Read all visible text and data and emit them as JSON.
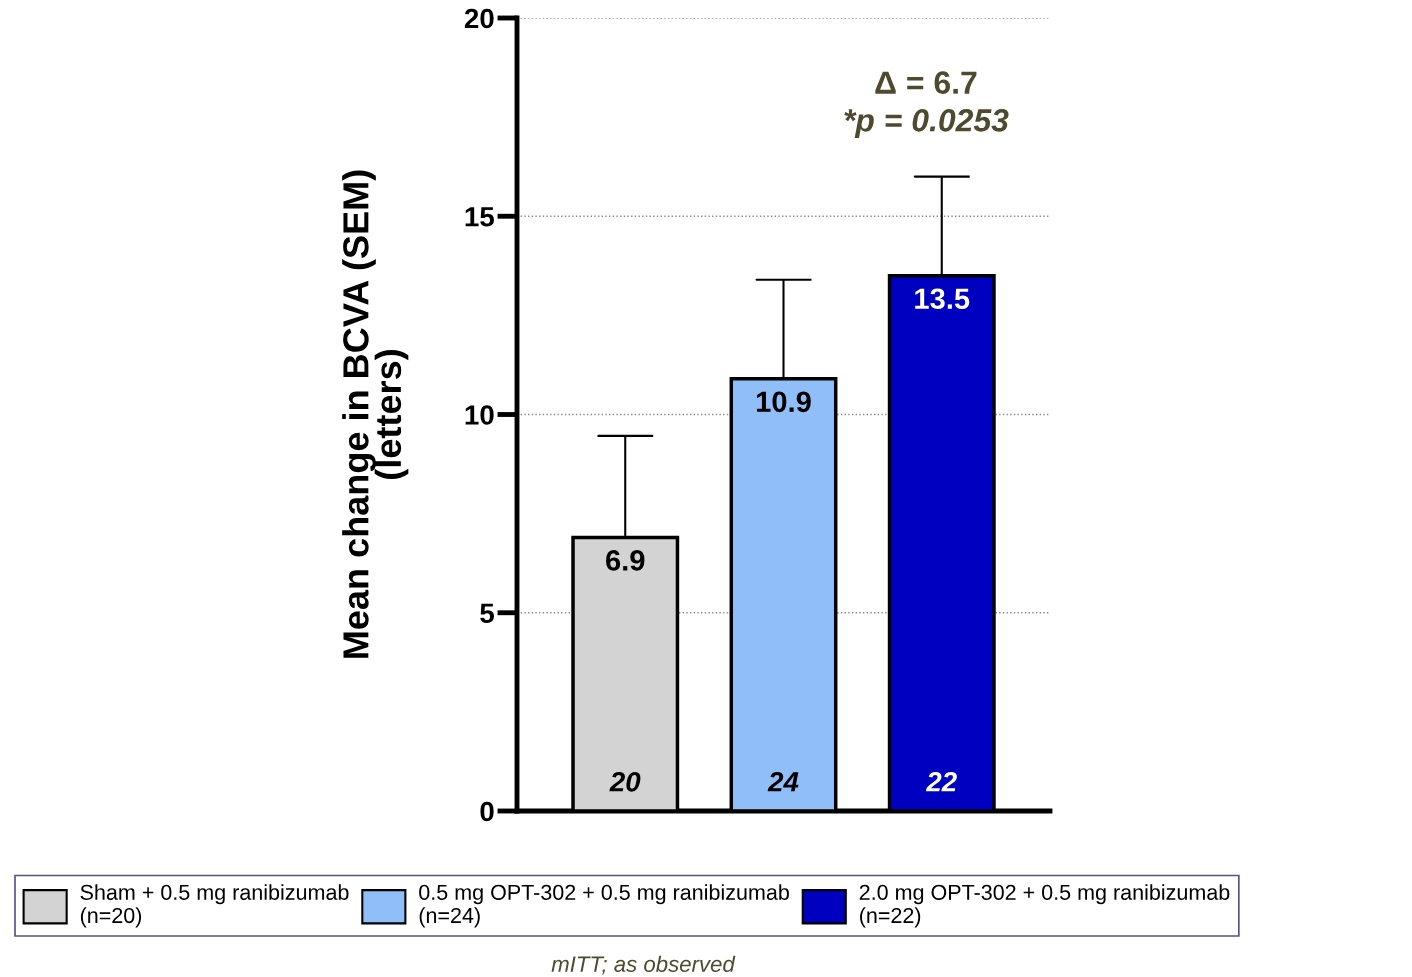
{
  "chart_data": {
    "type": "bar",
    "ylabel": "Mean change in BCVA (SEM)\n(letters)",
    "categories": [
      null,
      null,
      null
    ],
    "series": [
      {
        "name": "Sham + 0.5 mg ranibizumab\n(n=20)",
        "color": "#d3d3d3",
        "values": [
          6.9,
          null,
          null
        ],
        "errors": [
          [
            6.9,
            9.46
          ],
          null,
          null
        ]
      },
      {
        "name": "0.5 mg OPT-302 + 0.5 mg ranibizumab\n(n=24)",
        "color": "#90bef8",
        "values": [
          null,
          10.9,
          null
        ],
        "errors": [
          null,
          [
            10.9,
            13.4
          ],
          null
        ]
      },
      {
        "name": "2.0 mg OPT-302 + 0.5 mg ranibizumab\n(n=22)",
        "color": "#0000c0",
        "values": [
          null,
          null,
          13.5
        ],
        "errors": [
          null,
          null,
          [
            13.5,
            16.0
          ]
        ]
      }
    ],
    "ylim": [
      0,
      20
    ],
    "yticks": [
      0,
      5,
      10,
      15,
      20
    ],
    "grid": "y",
    "legend": "bottom",
    "data_labels": true,
    "annotations": [
      "20",
      "24",
      "22",
      "Δ = 6.7",
      "*p = 0.0253",
      "mITT; as observed"
    ]
  }
}
